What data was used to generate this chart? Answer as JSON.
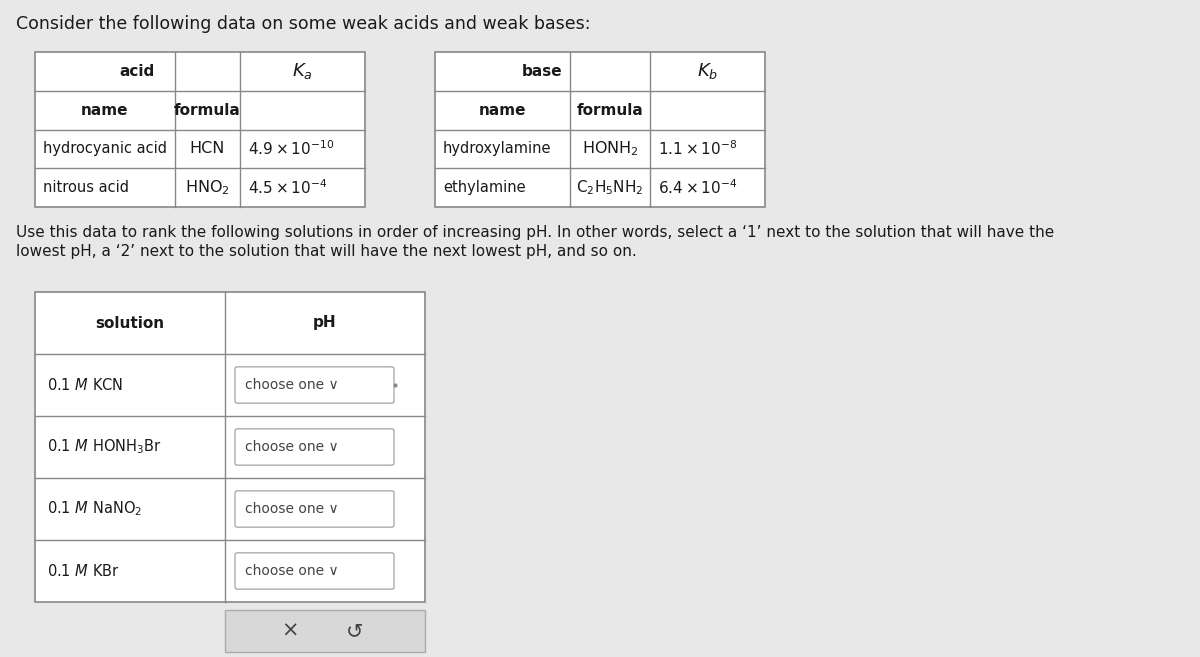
{
  "title": "Consider the following data on some weak acids and weak bases:",
  "title_fontsize": 12.5,
  "background_color": "#e8e8e8",
  "table_background": "#ffffff",
  "text_color": "#1a1a1a",
  "acid_table": {
    "header": "acid",
    "ka_label": "$K_a$",
    "subheaders": [
      "name",
      "formula"
    ],
    "rows": [
      [
        "hydrocyanic acid",
        "HCN",
        "$4.9 \\times 10^{-10}$"
      ],
      [
        "nitrous acid",
        "$\\mathrm{HNO_2}$",
        "$4.5 \\times 10^{-4}$"
      ]
    ]
  },
  "base_table": {
    "header": "base",
    "kb_label": "$K_b$",
    "subheaders": [
      "name",
      "formula"
    ],
    "rows": [
      [
        "hydroxylamine",
        "$\\mathrm{HONH_2}$",
        "$1.1 \\times 10^{-8}$"
      ],
      [
        "ethylamine",
        "$\\mathrm{C_2H_5NH_2}$",
        "$6.4 \\times 10^{-4}$"
      ]
    ]
  },
  "instruction_line1": "Use this data to rank the following solutions in order of increasing pH. In other words, select a ‘1’ next to the solution that will have the",
  "instruction_line2": "lowest pH, a ‘2’ next to the solution that will have the next lowest pH, and so on.",
  "solution_table": {
    "headers": [
      "solution",
      "pH"
    ],
    "rows": [
      [
        "0.1 M KCN",
        "choose one ∨"
      ],
      [
        "0.1 M HONH₃Br",
        "choose one ∨"
      ],
      [
        "0.1 M NaNO₂",
        "choose one ∨"
      ],
      [
        "0.1 M KBr",
        "choose one ∨"
      ]
    ]
  },
  "bottom_btn_x": "×",
  "bottom_btn_r": "↺",
  "line_color": "#888888",
  "border_color": "#888888"
}
